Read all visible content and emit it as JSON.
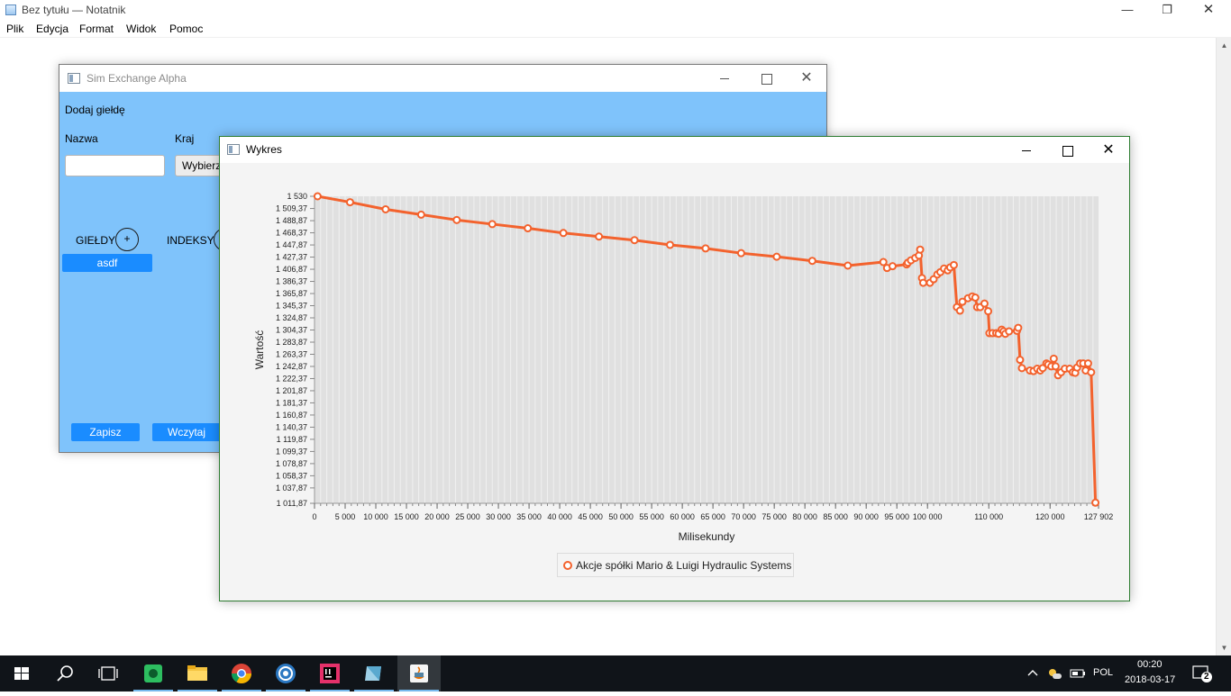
{
  "notepad": {
    "title": "Bez tytułu — Notatnik",
    "menu": [
      "Plik",
      "Edycja",
      "Format",
      "Widok",
      "Pomoc"
    ]
  },
  "sim_window": {
    "title": "Sim Exchange Alpha",
    "add_exchange_label": "Dodaj giełdę",
    "name_label": "Nazwa",
    "country_label": "Kraj",
    "country_select": "Wybierz",
    "exchanges_label": "GIEŁDY",
    "indexes_label": "INDEKSY",
    "plus": "+",
    "exchange_item": "asdf",
    "save_button": "Zapisz",
    "load_button": "Wczytaj"
  },
  "chart_window": {
    "title": "Wykres"
  },
  "chart_data": {
    "type": "line",
    "title": "",
    "xlabel": "Milisekundy",
    "ylabel": "Wartość",
    "xlim": [
      0,
      127902
    ],
    "ylim": [
      1011.87,
      1530
    ],
    "x_tick_labels": [
      "0",
      "5 000",
      "10 000",
      "15 000",
      "20 000",
      "25 000",
      "30 000",
      "35 000",
      "40 000",
      "45 000",
      "50 000",
      "55 000",
      "60 000",
      "65 000",
      "70 000",
      "75 000",
      "80 000",
      "85 000",
      "90 000",
      "95 000",
      "100 000",
      "110 000",
      "120 000",
      "127 902"
    ],
    "y_tick_labels": [
      "1 530",
      "1 509,37",
      "1 488,87",
      "1 468,37",
      "1 447,87",
      "1 427,37",
      "1 406,87",
      "1 386,37",
      "1 365,87",
      "1 345,37",
      "1 324,87",
      "1 304,37",
      "1 283,87",
      "1 263,37",
      "1 242,87",
      "1 222,37",
      "1 201,87",
      "1 181,37",
      "1 160,87",
      "1 140,37",
      "1 119,87",
      "1 099,37",
      "1 078,87",
      "1 058,37",
      "1 037,87",
      "1 011,87"
    ],
    "grid": true,
    "legend_position": "bottom",
    "series": [
      {
        "name": "Akcje spółki Mario & Luigi Hydraulic Systems",
        "color": "#f3622d",
        "x": [
          500,
          5800,
          11600,
          17400,
          23200,
          29000,
          34800,
          40600,
          46400,
          52200,
          58000,
          63800,
          69600,
          75400,
          81200,
          87000,
          92800,
          93400,
          94300,
          96600,
          96800,
          97300,
          98000,
          98600,
          98800,
          99100,
          99300,
          100400,
          101000,
          101600,
          102100,
          102700,
          103300,
          103700,
          104300,
          104800,
          105300,
          105700,
          106600,
          107300,
          107800,
          108100,
          108600,
          109300,
          109900,
          110100,
          110600,
          111200,
          111600,
          112100,
          112400,
          112700,
          113300,
          114600,
          114800,
          115100,
          115400,
          116700,
          117300,
          117900,
          118400,
          118800,
          119400,
          119700,
          120200,
          120600,
          120900,
          121300,
          121800,
          122400,
          123200,
          123700,
          124100,
          124400,
          124900,
          125400,
          125800,
          126200,
          126700,
          127400
        ],
        "y": [
          1530,
          1520,
          1508,
          1499,
          1490,
          1483,
          1476,
          1468,
          1462,
          1456,
          1448,
          1442,
          1434,
          1428,
          1421,
          1413,
          1419,
          1409,
          1412,
          1415,
          1418,
          1422,
          1426,
          1430,
          1440,
          1392,
          1384,
          1384,
          1390,
          1398,
          1402,
          1408,
          1405,
          1410,
          1414,
          1343,
          1337,
          1352,
          1358,
          1361,
          1359,
          1343,
          1343,
          1349,
          1336,
          1299,
          1299,
          1299,
          1298,
          1305,
          1302,
          1298,
          1302,
          1303,
          1308,
          1254,
          1240,
          1236,
          1235,
          1239,
          1236,
          1240,
          1248,
          1246,
          1243,
          1256,
          1243,
          1228,
          1233,
          1239,
          1239,
          1233,
          1232,
          1241,
          1248,
          1248,
          1236,
          1248,
          1233,
          1013
        ]
      }
    ]
  },
  "taskbar": {
    "language": "POL",
    "time": "00:20",
    "date": "2018-03-17",
    "notifications": "2"
  }
}
